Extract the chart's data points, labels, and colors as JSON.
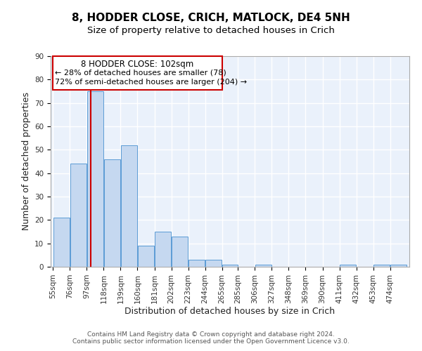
{
  "title": "8, HODDER CLOSE, CRICH, MATLOCK, DE4 5NH",
  "subtitle": "Size of property relative to detached houses in Crich",
  "xlabel": "Distribution of detached houses by size in Crich",
  "ylabel": "Number of detached properties",
  "bin_labels": [
    "55sqm",
    "76sqm",
    "97sqm",
    "118sqm",
    "139sqm",
    "160sqm",
    "181sqm",
    "202sqm",
    "223sqm",
    "244sqm",
    "265sqm",
    "285sqm",
    "306sqm",
    "327sqm",
    "348sqm",
    "369sqm",
    "390sqm",
    "411sqm",
    "432sqm",
    "453sqm",
    "474sqm"
  ],
  "bin_edges": [
    55,
    76,
    97,
    118,
    139,
    160,
    181,
    202,
    223,
    244,
    265,
    285,
    306,
    327,
    348,
    369,
    390,
    411,
    432,
    453,
    474,
    495
  ],
  "bar_heights": [
    21,
    44,
    75,
    46,
    52,
    9,
    15,
    13,
    3,
    3,
    1,
    0,
    1,
    0,
    0,
    0,
    0,
    1,
    0,
    1,
    1
  ],
  "bar_color": "#c5d8f0",
  "bar_edge_color": "#5b9bd5",
  "property_line_x": 102,
  "property_line_color": "#cc0000",
  "annotation_title": "8 HODDER CLOSE: 102sqm",
  "annotation_line1": "← 28% of detached houses are smaller (78)",
  "annotation_line2": "72% of semi-detached houses are larger (204) →",
  "annotation_box_color": "#cc0000",
  "ylim": [
    0,
    90
  ],
  "yticks": [
    0,
    10,
    20,
    30,
    40,
    50,
    60,
    70,
    80,
    90
  ],
  "footer1": "Contains HM Land Registry data © Crown copyright and database right 2024.",
  "footer2": "Contains public sector information licensed under the Open Government Licence v3.0.",
  "background_color": "#eaf1fb",
  "grid_color": "#ffffff",
  "title_fontsize": 11,
  "subtitle_fontsize": 9.5,
  "axis_label_fontsize": 9,
  "tick_fontsize": 7.5,
  "footer_fontsize": 6.5
}
